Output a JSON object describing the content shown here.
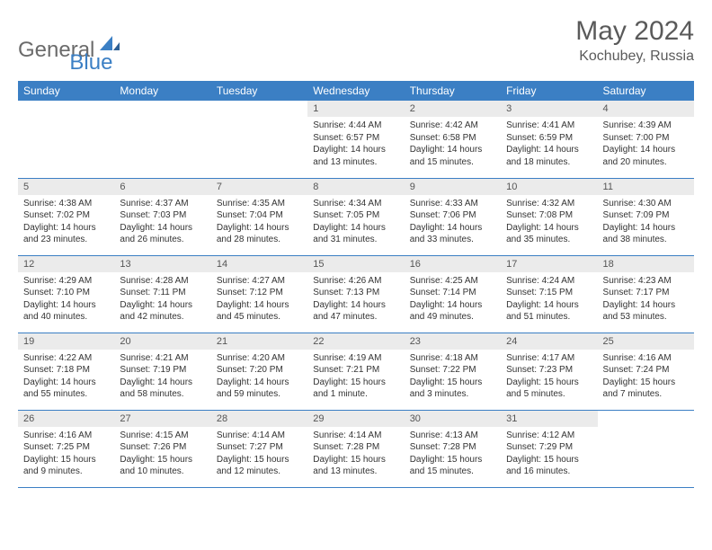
{
  "logo": {
    "text1": "General",
    "text2": "Blue"
  },
  "header": {
    "title": "May 2024",
    "location": "Kochubey, Russia"
  },
  "colors": {
    "header_bg": "#3b7fc4",
    "header_text": "#ffffff",
    "daynum_bg": "#ebebeb",
    "border": "#3b7fc4",
    "title_color": "#5a5a5a",
    "logo_gray": "#6b6b6b",
    "logo_blue": "#3b7fc4"
  },
  "weekdays": [
    "Sunday",
    "Monday",
    "Tuesday",
    "Wednesday",
    "Thursday",
    "Friday",
    "Saturday"
  ],
  "weeks": [
    [
      {
        "empty": true
      },
      {
        "empty": true
      },
      {
        "empty": true
      },
      {
        "day": "1",
        "sunrise": "Sunrise: 4:44 AM",
        "sunset": "Sunset: 6:57 PM",
        "daylight": "Daylight: 14 hours and 13 minutes."
      },
      {
        "day": "2",
        "sunrise": "Sunrise: 4:42 AM",
        "sunset": "Sunset: 6:58 PM",
        "daylight": "Daylight: 14 hours and 15 minutes."
      },
      {
        "day": "3",
        "sunrise": "Sunrise: 4:41 AM",
        "sunset": "Sunset: 6:59 PM",
        "daylight": "Daylight: 14 hours and 18 minutes."
      },
      {
        "day": "4",
        "sunrise": "Sunrise: 4:39 AM",
        "sunset": "Sunset: 7:00 PM",
        "daylight": "Daylight: 14 hours and 20 minutes."
      }
    ],
    [
      {
        "day": "5",
        "sunrise": "Sunrise: 4:38 AM",
        "sunset": "Sunset: 7:02 PM",
        "daylight": "Daylight: 14 hours and 23 minutes."
      },
      {
        "day": "6",
        "sunrise": "Sunrise: 4:37 AM",
        "sunset": "Sunset: 7:03 PM",
        "daylight": "Daylight: 14 hours and 26 minutes."
      },
      {
        "day": "7",
        "sunrise": "Sunrise: 4:35 AM",
        "sunset": "Sunset: 7:04 PM",
        "daylight": "Daylight: 14 hours and 28 minutes."
      },
      {
        "day": "8",
        "sunrise": "Sunrise: 4:34 AM",
        "sunset": "Sunset: 7:05 PM",
        "daylight": "Daylight: 14 hours and 31 minutes."
      },
      {
        "day": "9",
        "sunrise": "Sunrise: 4:33 AM",
        "sunset": "Sunset: 7:06 PM",
        "daylight": "Daylight: 14 hours and 33 minutes."
      },
      {
        "day": "10",
        "sunrise": "Sunrise: 4:32 AM",
        "sunset": "Sunset: 7:08 PM",
        "daylight": "Daylight: 14 hours and 35 minutes."
      },
      {
        "day": "11",
        "sunrise": "Sunrise: 4:30 AM",
        "sunset": "Sunset: 7:09 PM",
        "daylight": "Daylight: 14 hours and 38 minutes."
      }
    ],
    [
      {
        "day": "12",
        "sunrise": "Sunrise: 4:29 AM",
        "sunset": "Sunset: 7:10 PM",
        "daylight": "Daylight: 14 hours and 40 minutes."
      },
      {
        "day": "13",
        "sunrise": "Sunrise: 4:28 AM",
        "sunset": "Sunset: 7:11 PM",
        "daylight": "Daylight: 14 hours and 42 minutes."
      },
      {
        "day": "14",
        "sunrise": "Sunrise: 4:27 AM",
        "sunset": "Sunset: 7:12 PM",
        "daylight": "Daylight: 14 hours and 45 minutes."
      },
      {
        "day": "15",
        "sunrise": "Sunrise: 4:26 AM",
        "sunset": "Sunset: 7:13 PM",
        "daylight": "Daylight: 14 hours and 47 minutes."
      },
      {
        "day": "16",
        "sunrise": "Sunrise: 4:25 AM",
        "sunset": "Sunset: 7:14 PM",
        "daylight": "Daylight: 14 hours and 49 minutes."
      },
      {
        "day": "17",
        "sunrise": "Sunrise: 4:24 AM",
        "sunset": "Sunset: 7:15 PM",
        "daylight": "Daylight: 14 hours and 51 minutes."
      },
      {
        "day": "18",
        "sunrise": "Sunrise: 4:23 AM",
        "sunset": "Sunset: 7:17 PM",
        "daylight": "Daylight: 14 hours and 53 minutes."
      }
    ],
    [
      {
        "day": "19",
        "sunrise": "Sunrise: 4:22 AM",
        "sunset": "Sunset: 7:18 PM",
        "daylight": "Daylight: 14 hours and 55 minutes."
      },
      {
        "day": "20",
        "sunrise": "Sunrise: 4:21 AM",
        "sunset": "Sunset: 7:19 PM",
        "daylight": "Daylight: 14 hours and 58 minutes."
      },
      {
        "day": "21",
        "sunrise": "Sunrise: 4:20 AM",
        "sunset": "Sunset: 7:20 PM",
        "daylight": "Daylight: 14 hours and 59 minutes."
      },
      {
        "day": "22",
        "sunrise": "Sunrise: 4:19 AM",
        "sunset": "Sunset: 7:21 PM",
        "daylight": "Daylight: 15 hours and 1 minute."
      },
      {
        "day": "23",
        "sunrise": "Sunrise: 4:18 AM",
        "sunset": "Sunset: 7:22 PM",
        "daylight": "Daylight: 15 hours and 3 minutes."
      },
      {
        "day": "24",
        "sunrise": "Sunrise: 4:17 AM",
        "sunset": "Sunset: 7:23 PM",
        "daylight": "Daylight: 15 hours and 5 minutes."
      },
      {
        "day": "25",
        "sunrise": "Sunrise: 4:16 AM",
        "sunset": "Sunset: 7:24 PM",
        "daylight": "Daylight: 15 hours and 7 minutes."
      }
    ],
    [
      {
        "day": "26",
        "sunrise": "Sunrise: 4:16 AM",
        "sunset": "Sunset: 7:25 PM",
        "daylight": "Daylight: 15 hours and 9 minutes."
      },
      {
        "day": "27",
        "sunrise": "Sunrise: 4:15 AM",
        "sunset": "Sunset: 7:26 PM",
        "daylight": "Daylight: 15 hours and 10 minutes."
      },
      {
        "day": "28",
        "sunrise": "Sunrise: 4:14 AM",
        "sunset": "Sunset: 7:27 PM",
        "daylight": "Daylight: 15 hours and 12 minutes."
      },
      {
        "day": "29",
        "sunrise": "Sunrise: 4:14 AM",
        "sunset": "Sunset: 7:28 PM",
        "daylight": "Daylight: 15 hours and 13 minutes."
      },
      {
        "day": "30",
        "sunrise": "Sunrise: 4:13 AM",
        "sunset": "Sunset: 7:28 PM",
        "daylight": "Daylight: 15 hours and 15 minutes."
      },
      {
        "day": "31",
        "sunrise": "Sunrise: 4:12 AM",
        "sunset": "Sunset: 7:29 PM",
        "daylight": "Daylight: 15 hours and 16 minutes."
      },
      {
        "empty": true
      }
    ]
  ]
}
